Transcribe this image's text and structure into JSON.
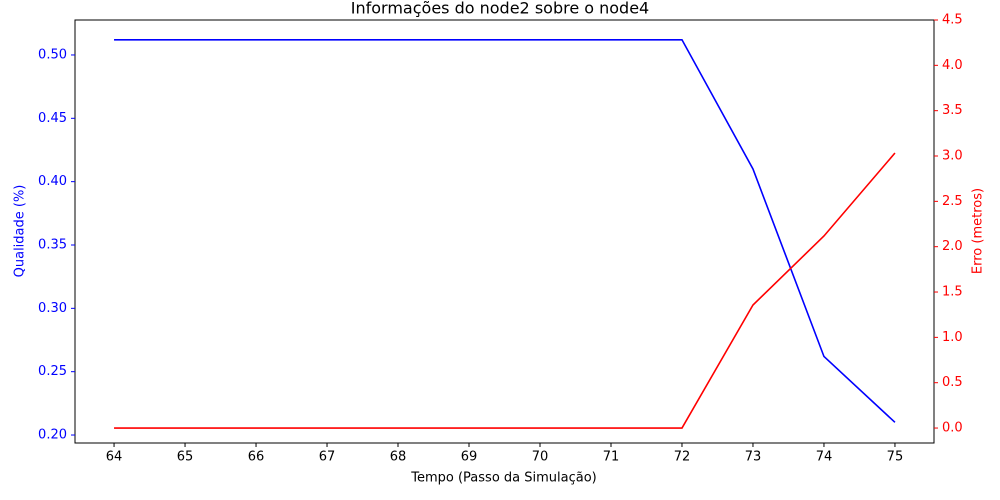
{
  "chart_data": {
    "type": "line",
    "title": "Informações do node2 sobre o node4",
    "x_label": "Tempo (Passo da Simulação)",
    "y_label": "Qualidade (%)",
    "y2_label": "Erro (metros)",
    "y_color": "#0000ff",
    "y2_color": "#ff0000",
    "x": [
      64,
      65,
      66,
      67,
      68,
      69,
      70,
      71,
      72,
      73,
      74,
      75
    ],
    "xlim": [
      63.45,
      75.55
    ],
    "xticks": [
      64,
      65,
      66,
      67,
      68,
      69,
      70,
      71,
      72,
      73,
      74,
      75
    ],
    "ylim": [
      0.1937,
      0.5276
    ],
    "yticks": [
      {
        "value": 0.2,
        "label": "0.20"
      },
      0.25,
      {
        "value": 0.3,
        "label": "0.30"
      },
      0.35,
      {
        "value": 0.4,
        "label": "0.40"
      },
      0.45,
      {
        "value": 0.5,
        "label": "0.50"
      }
    ],
    "y2lim": [
      -0.165,
      4.5
    ],
    "y2ticks": [
      {
        "value": 0,
        "label": "0.0"
      },
      0.5,
      {
        "value": 1,
        "label": "1.0"
      },
      1.5,
      {
        "value": 2,
        "label": "2.0"
      },
      2.5,
      {
        "value": 3,
        "label": "3.0"
      },
      3.5,
      {
        "value": 4,
        "label": "4.0"
      },
      4.5
    ],
    "series": [
      {
        "name": "Qualidade",
        "color": "#0000ff",
        "values": [
          0.512,
          0.512,
          0.512,
          0.512,
          0.512,
          0.512,
          0.512,
          0.512,
          0.512,
          0.41,
          0.262,
          0.21
        ]
      },
      {
        "name": "Erro",
        "color": "#ff0000",
        "axis": "y2",
        "values": [
          0,
          0,
          0,
          0,
          0,
          0,
          0,
          0,
          0,
          1.357,
          2.118,
          3.033
        ]
      }
    ]
  }
}
